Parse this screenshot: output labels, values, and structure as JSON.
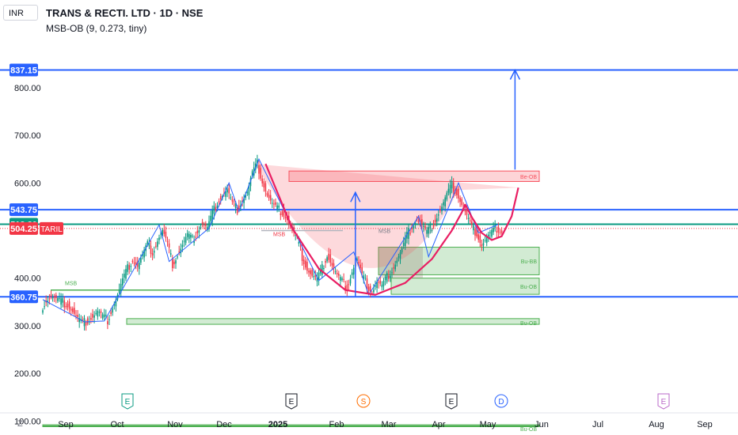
{
  "header": {
    "currency": "INR",
    "title": "TRANS & RECTI. LTD · 1D · NSE",
    "indicator": "MSB-OB (9, 0.273, tiny)",
    "scale_mode": "Z"
  },
  "colors": {
    "blue": "#2962ff",
    "green": "#089981",
    "red": "#f23645",
    "zone_green": "#4caf50",
    "zone_red": "#f7525f"
  },
  "chart_data": {
    "type": "candlestick",
    "symbol": "TRANS & RECTI. LTD",
    "interval": "1D",
    "exchange": "NSE",
    "ylim": [
      90,
      890
    ],
    "y_ticks": [
      100,
      200,
      300,
      400,
      600,
      700,
      800
    ],
    "y_tick_labels": [
      "100.00",
      "200.00",
      "300.00",
      "400.00",
      "600.00",
      "700.00",
      "800.00"
    ],
    "x_tick_labels": [
      "Sep",
      "Oct",
      "Nov",
      "Dec",
      "2025",
      "Feb",
      "Mar",
      "Apr",
      "May",
      "Jun",
      "Jul",
      "Aug",
      "Sep"
    ],
    "price_tags": [
      {
        "label": "837.15",
        "value": 837.15,
        "color": "#2962ff"
      },
      {
        "label": "543.75",
        "value": 543.75,
        "color": "#2962ff"
      },
      {
        "label": "513.20",
        "value": 513.2,
        "color": "#089981"
      },
      {
        "label": "504.25",
        "value": 504.25,
        "color": "#f23645",
        "name": "TARIL"
      },
      {
        "label": "360.75",
        "value": 360.75,
        "color": "#2962ff"
      }
    ],
    "horizontal_lines": [
      837.15,
      543.75,
      513.2,
      360.75
    ],
    "zones": [
      {
        "label": "Be-OB",
        "kind": "bearish",
        "low": 603,
        "high": 625
      },
      {
        "label": "Bu-BB",
        "kind": "bullish",
        "low": 407,
        "high": 465
      },
      {
        "label": "Bu-OB",
        "kind": "bullish",
        "low": 366,
        "high": 400
      },
      {
        "label": "Bu-OB",
        "kind": "bullish",
        "low": 303,
        "high": 315
      },
      {
        "label": "Bu-OB",
        "kind": "bullish",
        "low": 88,
        "high": 92
      }
    ],
    "markers": [
      {
        "text": "MSB",
        "value": 385,
        "color": "#4caf50"
      },
      {
        "text": "MSB",
        "value": 488,
        "color": "#f23645"
      },
      {
        "text": "MSB",
        "value": 495,
        "color": "#787b86"
      }
    ],
    "events": [
      {
        "letter": "E",
        "type": "earnings"
      },
      {
        "letter": "E",
        "type": "earnings"
      },
      {
        "letter": "S",
        "type": "split"
      },
      {
        "letter": "E",
        "type": "earnings"
      },
      {
        "letter": "D",
        "type": "dividend"
      },
      {
        "letter": "E",
        "type": "earnings"
      }
    ],
    "price_path": [
      [
        0,
        335
      ],
      [
        3,
        355
      ],
      [
        6,
        362
      ],
      [
        9,
        355
      ],
      [
        12,
        350
      ],
      [
        16,
        345
      ],
      [
        19,
        330
      ],
      [
        22,
        315
      ],
      [
        25,
        305
      ],
      [
        28,
        312
      ],
      [
        31,
        320
      ],
      [
        34,
        330
      ],
      [
        37,
        318
      ],
      [
        40,
        312
      ],
      [
        43,
        340
      ],
      [
        46,
        365
      ],
      [
        49,
        395
      ],
      [
        52,
        420
      ],
      [
        55,
        440
      ],
      [
        58,
        425
      ],
      [
        61,
        448
      ],
      [
        64,
        470
      ],
      [
        67,
        455
      ],
      [
        70,
        480
      ],
      [
        73,
        500
      ],
      [
        76,
        470
      ],
      [
        79,
        430
      ],
      [
        82,
        450
      ],
      [
        85,
        470
      ],
      [
        88,
        490
      ],
      [
        91,
        480
      ],
      [
        94,
        500
      ],
      [
        97,
        515
      ],
      [
        100,
        505
      ],
      [
        103,
        535
      ],
      [
        106,
        560
      ],
      [
        109,
        575
      ],
      [
        112,
        585
      ],
      [
        115,
        555
      ],
      [
        118,
        545
      ],
      [
        121,
        565
      ],
      [
        124,
        580
      ],
      [
        127,
        620
      ],
      [
        130,
        640
      ],
      [
        133,
        605
      ],
      [
        136,
        575
      ],
      [
        139,
        555
      ],
      [
        142,
        545
      ],
      [
        145,
        540
      ],
      [
        148,
        525
      ],
      [
        151,
        500
      ],
      [
        154,
        480
      ],
      [
        157,
        445
      ],
      [
        160,
        420
      ],
      [
        163,
        405
      ],
      [
        166,
        398
      ],
      [
        169,
        420
      ],
      [
        172,
        450
      ],
      [
        175,
        428
      ],
      [
        178,
        405
      ],
      [
        181,
        392
      ],
      [
        184,
        380
      ],
      [
        187,
        415
      ],
      [
        190,
        440
      ],
      [
        193,
        405
      ],
      [
        196,
        385
      ],
      [
        199,
        372
      ],
      [
        202,
        392
      ],
      [
        205,
        382
      ],
      [
        208,
        402
      ],
      [
        211,
        418
      ],
      [
        214,
        438
      ],
      [
        217,
        460
      ],
      [
        220,
        490
      ],
      [
        223,
        510
      ],
      [
        226,
        525
      ],
      [
        229,
        512
      ],
      [
        232,
        495
      ],
      [
        235,
        510
      ],
      [
        238,
        530
      ],
      [
        241,
        550
      ],
      [
        244,
        575
      ],
      [
        247,
        595
      ],
      [
        250,
        580
      ],
      [
        253,
        555
      ],
      [
        256,
        530
      ],
      [
        259,
        505
      ],
      [
        262,
        495
      ],
      [
        265,
        470
      ],
      [
        268,
        485
      ],
      [
        271,
        495
      ],
      [
        274,
        505
      ],
      [
        277,
        500
      ]
    ],
    "drawings": {
      "cup_curve": [
        [
          134,
          640
        ],
        [
          150,
          505
        ],
        [
          166,
          420
        ],
        [
          182,
          375
        ],
        [
          200,
          365
        ],
        [
          218,
          390
        ],
        [
          234,
          440
        ],
        [
          246,
          500
        ],
        [
          252,
          538
        ],
        [
          254,
          555
        ]
      ],
      "handle_curve": [
        [
          254,
          555
        ],
        [
          258,
          528
        ],
        [
          264,
          495
        ],
        [
          270,
          480
        ],
        [
          276,
          488
        ],
        [
          282,
          530
        ],
        [
          286,
          590
        ]
      ],
      "zigzag": [
        [
          0,
          355
        ],
        [
          19,
          320
        ],
        [
          25,
          308
        ],
        [
          37,
          310
        ],
        [
          70,
          512
        ],
        [
          76,
          435
        ],
        [
          100,
          505
        ],
        [
          112,
          600
        ],
        [
          118,
          540
        ],
        [
          130,
          650
        ],
        [
          166,
          395
        ],
        [
          187,
          455
        ],
        [
          196,
          365
        ],
        [
          226,
          530
        ],
        [
          232,
          445
        ],
        [
          250,
          600
        ],
        [
          262,
          495
        ],
        [
          274,
          513
        ]
      ],
      "arrows": [
        {
          "x": 188,
          "from": 362,
          "to": 580
        },
        {
          "x": 284,
          "from": 628,
          "to": 837.15
        }
      ]
    }
  }
}
